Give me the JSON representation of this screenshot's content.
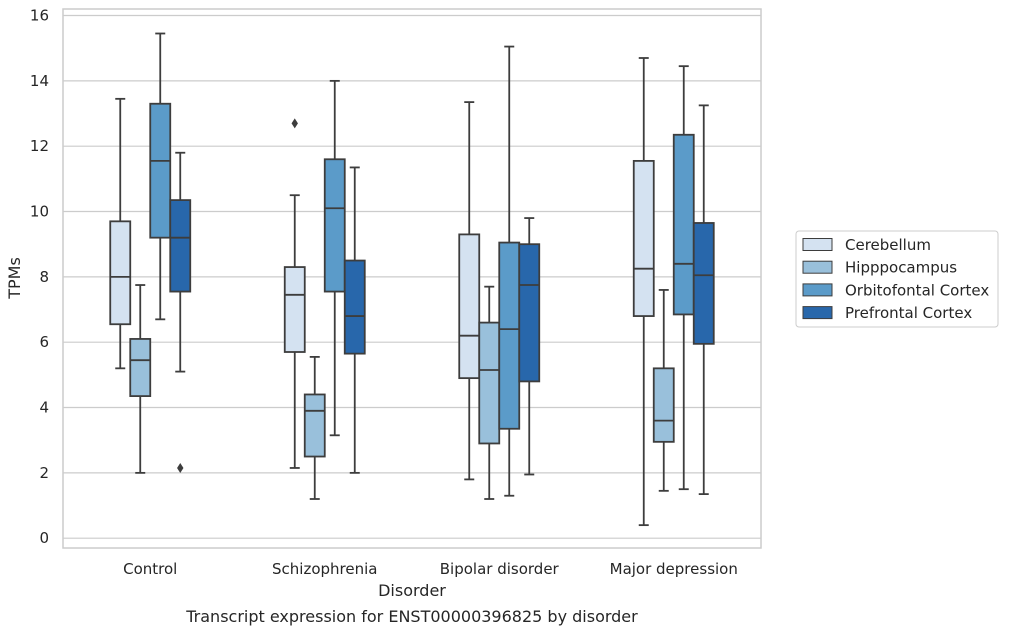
{
  "chart_data": {
    "type": "boxplot",
    "title": "",
    "caption": "Transcript expression for ENST00000396825 by disorder",
    "xlabel": "Disorder",
    "ylabel": "TPMs",
    "ylim": [
      -0.3,
      16.2
    ],
    "yticks": [
      0,
      2,
      4,
      6,
      8,
      10,
      12,
      14,
      16
    ],
    "grid": true,
    "legend_position": "right",
    "categories": [
      "Control",
      "Schizophrenia",
      "Bipolar disorder",
      "Major depression"
    ],
    "series": [
      {
        "name": "Cerebellum",
        "color": "#d4e2f1",
        "boxes": [
          {
            "whislo": 5.2,
            "q1": 6.55,
            "med": 8.0,
            "q3": 9.7,
            "whishi": 13.45,
            "fliers": []
          },
          {
            "whislo": 2.15,
            "q1": 5.7,
            "med": 7.45,
            "q3": 8.3,
            "whishi": 10.5,
            "fliers": [
              12.7
            ]
          },
          {
            "whislo": 1.8,
            "q1": 4.9,
            "med": 6.2,
            "q3": 9.3,
            "whishi": 13.35,
            "fliers": []
          },
          {
            "whislo": 0.4,
            "q1": 6.8,
            "med": 8.25,
            "q3": 11.55,
            "whishi": 14.7,
            "fliers": []
          }
        ]
      },
      {
        "name": "Hipppocampus",
        "color": "#99c0db",
        "boxes": [
          {
            "whislo": 2.0,
            "q1": 4.35,
            "med": 5.45,
            "q3": 6.1,
            "whishi": 7.75,
            "fliers": []
          },
          {
            "whislo": 1.2,
            "q1": 2.5,
            "med": 3.9,
            "q3": 4.4,
            "whishi": 5.55,
            "fliers": []
          },
          {
            "whislo": 1.2,
            "q1": 2.9,
            "med": 5.15,
            "q3": 6.6,
            "whishi": 7.7,
            "fliers": []
          },
          {
            "whislo": 1.45,
            "q1": 2.95,
            "med": 3.6,
            "q3": 5.2,
            "whishi": 7.6,
            "fliers": []
          }
        ]
      },
      {
        "name": "Orbitofontal Cortex",
        "color": "#5b9bc9",
        "boxes": [
          {
            "whislo": 6.7,
            "q1": 9.2,
            "med": 11.55,
            "q3": 13.3,
            "whishi": 15.45,
            "fliers": []
          },
          {
            "whislo": 3.15,
            "q1": 7.55,
            "med": 10.1,
            "q3": 11.6,
            "whishi": 14.0,
            "fliers": []
          },
          {
            "whislo": 1.3,
            "q1": 3.35,
            "med": 6.4,
            "q3": 9.05,
            "whishi": 15.05,
            "fliers": []
          },
          {
            "whislo": 1.5,
            "q1": 6.85,
            "med": 8.4,
            "q3": 12.35,
            "whishi": 14.45,
            "fliers": []
          }
        ]
      },
      {
        "name": "Prefrontal Cortex",
        "color": "#2867ab",
        "boxes": [
          {
            "whislo": 5.1,
            "q1": 7.55,
            "med": 9.2,
            "q3": 10.35,
            "whishi": 11.8,
            "fliers": [
              2.15
            ]
          },
          {
            "whislo": 2.0,
            "q1": 5.65,
            "med": 6.8,
            "q3": 8.5,
            "whishi": 11.35,
            "fliers": []
          },
          {
            "whislo": 1.95,
            "q1": 4.8,
            "med": 7.75,
            "q3": 9.0,
            "whishi": 9.8,
            "fliers": []
          },
          {
            "whislo": 1.35,
            "q1": 5.95,
            "med": 8.05,
            "q3": 9.65,
            "whishi": 13.25,
            "fliers": []
          }
        ]
      }
    ]
  }
}
